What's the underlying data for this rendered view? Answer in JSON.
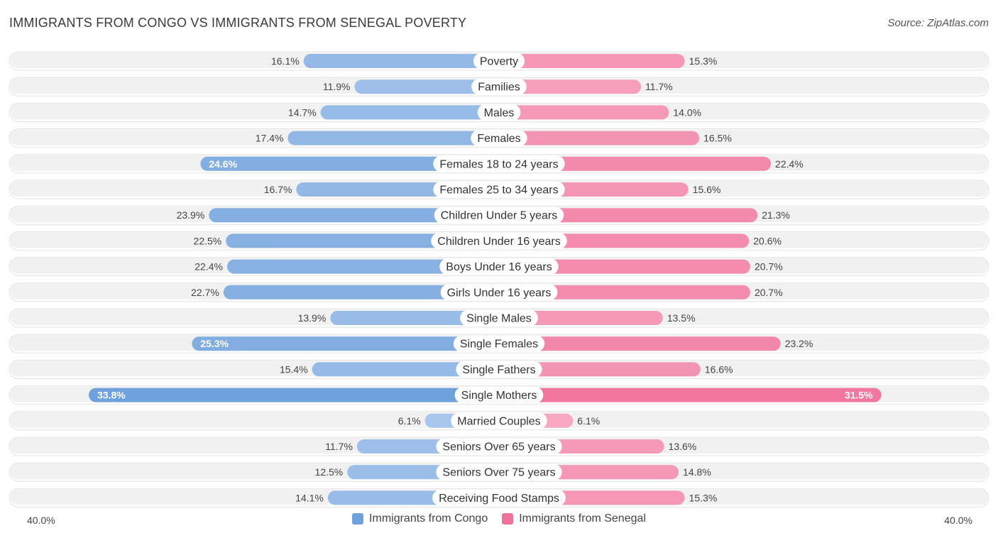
{
  "header": {
    "title": "IMMIGRANTS FROM CONGO VS IMMIGRANTS FROM SENEGAL POVERTY",
    "source": "Source: ZipAtlas.com"
  },
  "colors": {
    "congo": "#6fa1dc",
    "congo_light": "#a9c7ec",
    "senegal": "#f0729b",
    "senegal_light": "#f7a9c2",
    "row_bg": "#f1f1f1",
    "row_border": "#e2e2e2"
  },
  "axis": {
    "left_label": "40.0%",
    "right_label": "40.0%"
  },
  "legend": {
    "congo_label": "Immigrants from Congo",
    "senegal_label": "Immigrants from Senegal"
  },
  "chart_data": {
    "type": "bar",
    "orientation": "horizontal-diverging",
    "title": "IMMIGRANTS FROM CONGO VS IMMIGRANTS FROM SENEGAL POVERTY",
    "xlim": [
      -40,
      40
    ],
    "categories": [
      "Poverty",
      "Families",
      "Males",
      "Females",
      "Females 18 to 24 years",
      "Females 25 to 34 years",
      "Children Under 5 years",
      "Children Under 16 years",
      "Boys Under 16 years",
      "Girls Under 16 years",
      "Single Males",
      "Single Females",
      "Single Fathers",
      "Single Mothers",
      "Married Couples",
      "Seniors Over 65 years",
      "Seniors Over 75 years",
      "Receiving Food Stamps"
    ],
    "series": [
      {
        "name": "Immigrants from Congo",
        "values": [
          16.1,
          11.9,
          14.7,
          17.4,
          24.6,
          16.7,
          23.9,
          22.5,
          22.4,
          22.7,
          13.9,
          25.3,
          15.4,
          33.8,
          6.1,
          11.7,
          12.5,
          14.1
        ],
        "labels": [
          "16.1%",
          "11.9%",
          "14.7%",
          "17.4%",
          "24.6%",
          "16.7%",
          "23.9%",
          "22.5%",
          "22.4%",
          "22.7%",
          "13.9%",
          "25.3%",
          "15.4%",
          "33.8%",
          "6.1%",
          "11.7%",
          "12.5%",
          "14.1%"
        ]
      },
      {
        "name": "Immigrants from Senegal",
        "values": [
          15.3,
          11.7,
          14.0,
          16.5,
          22.4,
          15.6,
          21.3,
          20.6,
          20.7,
          20.7,
          13.5,
          23.2,
          16.6,
          31.5,
          6.1,
          13.6,
          14.8,
          15.3
        ],
        "labels": [
          "15.3%",
          "11.7%",
          "14.0%",
          "16.5%",
          "22.4%",
          "15.6%",
          "21.3%",
          "20.6%",
          "20.7%",
          "20.7%",
          "13.5%",
          "23.2%",
          "16.6%",
          "31.5%",
          "6.1%",
          "13.6%",
          "14.8%",
          "15.3%"
        ]
      }
    ]
  }
}
